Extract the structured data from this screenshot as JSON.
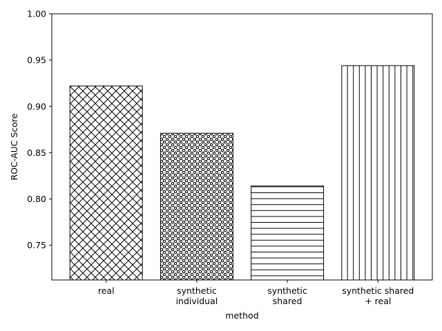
{
  "chart_data": {
    "type": "bar",
    "categories": [
      [
        "real"
      ],
      [
        "synthetic",
        "individual"
      ],
      [
        "synthetic",
        "shared"
      ],
      [
        "synthetic shared",
        "+ real"
      ]
    ],
    "values": [
      0.922,
      0.871,
      0.814,
      0.944
    ],
    "hatches": [
      "cross-diagonal",
      "small-circles",
      "horizontal",
      "vertical"
    ],
    "title": "",
    "xlabel": "method",
    "ylabel": "ROC-AUC Score",
    "ylim": [
      0.7125,
      1.0
    ],
    "yticks": [
      "0.75",
      "0.80",
      "0.85",
      "0.90",
      "0.95",
      "1.00"
    ],
    "grid": false,
    "legend": "none",
    "colors": {
      "bar_fill": "#ffffff",
      "bar_edge": "#000000",
      "hatch": "#000000"
    }
  }
}
